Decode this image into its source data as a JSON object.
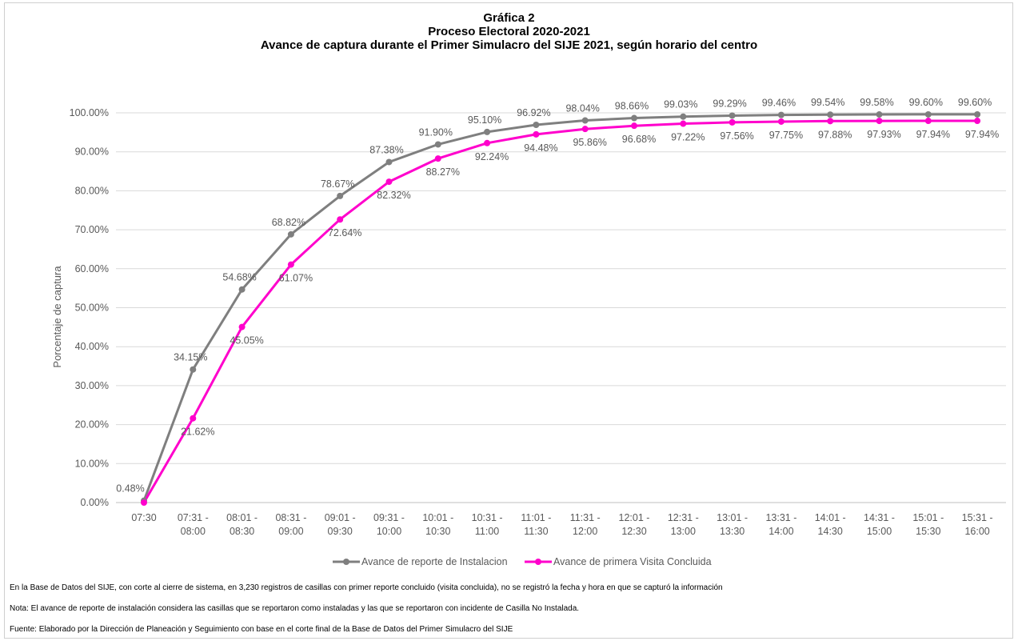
{
  "titles": {
    "line1": "Gráfica 2",
    "line2": "Proceso Electoral 2020-2021",
    "line3": "Avance de captura durante el Primer Simulacro del SIJE 2021, según horario del centro"
  },
  "chart_data": {
    "type": "line",
    "ylabel": "Porcentaje de captura",
    "ylim": [
      0,
      100
    ],
    "yticks": [
      "0.00%",
      "10.00%",
      "20.00%",
      "30.00%",
      "40.00%",
      "50.00%",
      "60.00%",
      "70.00%",
      "80.00%",
      "90.00%",
      "100.00%"
    ],
    "categories": [
      [
        "07:30"
      ],
      [
        "07:31 -",
        "08:00"
      ],
      [
        "08:01 -",
        "08:30"
      ],
      [
        "08:31 -",
        "09:00"
      ],
      [
        "09:01 -",
        "09:30"
      ],
      [
        "09:31 -",
        "10:00"
      ],
      [
        "10:01 -",
        "10:30"
      ],
      [
        "10:31 -",
        "11:00"
      ],
      [
        "11:01 -",
        "11:30"
      ],
      [
        "11:31 -",
        "12:00"
      ],
      [
        "12:01 -",
        "12:30"
      ],
      [
        "12:31 -",
        "13:00"
      ],
      [
        "13:01 -",
        "13:30"
      ],
      [
        "13:31 -",
        "14:00"
      ],
      [
        "14:01 -",
        "14:30"
      ],
      [
        "14:31 -",
        "15:00"
      ],
      [
        "15:01 -",
        "15:30"
      ],
      [
        "15:31 -",
        "16:00"
      ]
    ],
    "series": [
      {
        "name": "Avance de reporte de Instalacion",
        "color": "#7f7f7f",
        "values": [
          0.48,
          34.15,
          54.68,
          68.82,
          78.67,
          87.38,
          91.9,
          95.1,
          96.92,
          98.04,
          98.66,
          99.03,
          99.29,
          99.46,
          99.54,
          99.58,
          99.6,
          99.6
        ],
        "labels": [
          "0.48%",
          "34.15%",
          "54.68%",
          "68.82%",
          "78.67%",
          "87.38%",
          "91.90%",
          "95.10%",
          "96.92%",
          "98.04%",
          "98.66%",
          "99.03%",
          "99.29%",
          "99.46%",
          "99.54%",
          "99.58%",
          "99.60%",
          "99.60%"
        ],
        "label_position": "above"
      },
      {
        "name": "Avance de primera Visita Concluida",
        "color": "#ff00cc",
        "values": [
          0.0,
          21.62,
          45.05,
          61.07,
          72.64,
          82.32,
          88.27,
          92.24,
          94.48,
          95.86,
          96.68,
          97.22,
          97.56,
          97.75,
          97.88,
          97.93,
          97.94,
          97.94
        ],
        "labels": [
          "",
          "21.62%",
          "45.05%",
          "61.07%",
          "72.64%",
          "82.32%",
          "88.27%",
          "92.24%",
          "94.48%",
          "95.86%",
          "96.68%",
          "97.22%",
          "97.56%",
          "97.75%",
          "97.88%",
          "97.93%",
          "97.94%",
          "97.94%"
        ],
        "label_position": "below"
      }
    ],
    "grid": true,
    "legend": "bottom"
  },
  "notes": {
    "line1": "En la Base de Datos del SIJE, con corte al cierre de sistema, en 3,230 registros de casillas con primer reporte concluido (visita concluida), no se registró la fecha y hora en que se capturó la información",
    "line2": "Nota: El avance de reporte de instalación considera las casillas que se reportaron como instaladas y las que se reportaron con incidente de Casilla No Instalada.",
    "line3": "Fuente: Elaborado por la Dirección de Planeación y Seguimiento con base en el corte final de la Base de Datos del Primer Simulacro del SIJE"
  }
}
